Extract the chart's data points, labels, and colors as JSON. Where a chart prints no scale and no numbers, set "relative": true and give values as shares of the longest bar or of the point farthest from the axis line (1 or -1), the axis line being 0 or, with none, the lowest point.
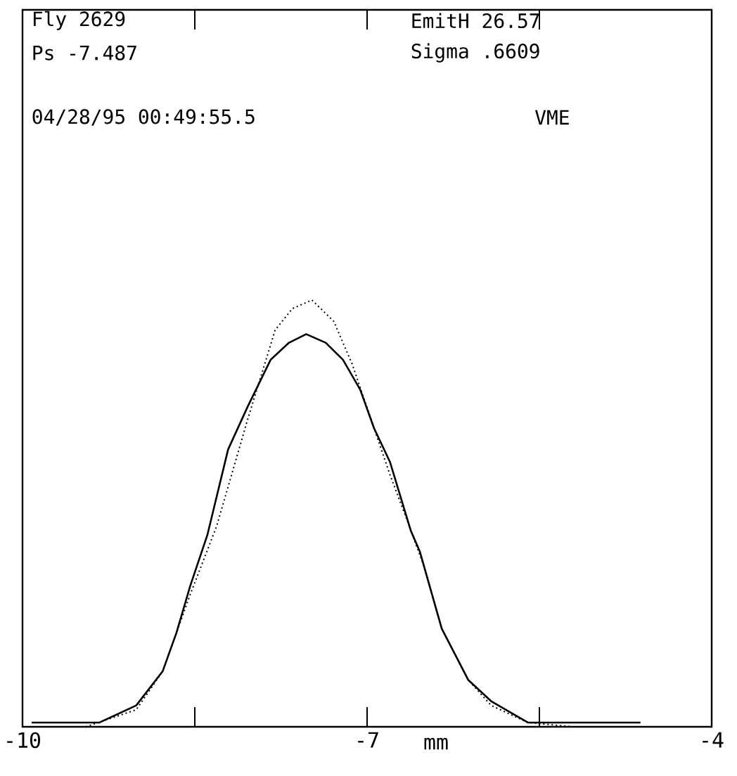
{
  "chart_data": {
    "type": "line",
    "relative": true,
    "xlabel": "mm",
    "annotations": [
      "Fly 2629",
      "Ps -7.487",
      "EmitH 26.57",
      "Sigma .6609",
      "04/28/95 00:49:55.5",
      "VME"
    ],
    "xlim": [
      -10,
      -4
    ],
    "xticks": [
      -10,
      {
        "value": -8.5,
        "label": null
      },
      -7,
      {
        "value": -5.5,
        "label": null
      },
      -4
    ],
    "marker": "none",
    "series": [
      {
        "color": "#000000",
        "line_style": "solid",
        "x": [
          -9.92,
          -9.68,
          -9.45,
          -9.33,
          -9.01,
          -8.78,
          -8.66,
          -8.54,
          -8.39,
          -8.21,
          -8.04,
          -7.84,
          -7.68,
          -7.53,
          -7.36,
          -7.21,
          -7.06,
          -6.94,
          -6.8,
          -6.62,
          -6.54,
          -6.35,
          -6.12,
          -5.92,
          -5.6,
          -5.09,
          -4.62
        ],
        "values": [
          0.01,
          0.01,
          0.01,
          0.01,
          0.05,
          0.13,
          0.22,
          0.33,
          0.45,
          0.65,
          0.75,
          0.86,
          0.9,
          0.92,
          0.9,
          0.86,
          0.79,
          0.7,
          0.62,
          0.46,
          0.41,
          0.23,
          0.11,
          0.06,
          0.01,
          0.01,
          0.01
        ]
      },
      {
        "color": "#000000",
        "line_style": "dotted",
        "x": [
          -9.45,
          -9.01,
          -8.78,
          -8.54,
          -8.31,
          -8.04,
          -7.8,
          -7.65,
          -7.48,
          -7.29,
          -7.13,
          -6.94,
          -6.8,
          -6.66,
          -6.51,
          -6.35,
          -6.12,
          -5.92,
          -5.6,
          -5.21
        ],
        "values": [
          0,
          0.04,
          0.13,
          0.31,
          0.47,
          0.72,
          0.93,
          0.98,
          1,
          0.95,
          0.85,
          0.7,
          0.59,
          0.49,
          0.38,
          0.23,
          0.11,
          0.05,
          0.01,
          0
        ]
      }
    ]
  }
}
